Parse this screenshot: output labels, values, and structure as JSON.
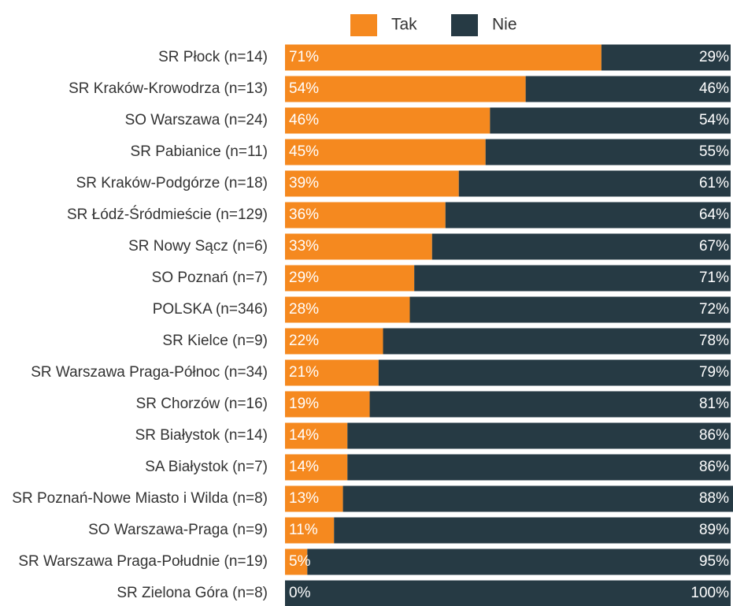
{
  "chart_data": {
    "type": "stacked-bar-horizontal",
    "categories": [
      "SR Płock (n=14)",
      "SR Kraków-Krowodrza (n=13)",
      "SO Warszawa (n=24)",
      "SR Pabianice (n=11)",
      "SR Kraków-Podgórze (n=18)",
      "SR Łódź-Śródmieście (n=129)",
      "SR Nowy Sącz (n=6)",
      "SO Poznań (n=7)",
      "POLSKA (n=346)",
      "SR Kielce (n=9)",
      "SR Warszawa Praga-Północ (n=34)",
      "SR Chorzów (n=16)",
      "SR Białystok (n=14)",
      "SA Białystok (n=7)",
      "SR Poznań-Nowe Miasto i Wilda (n=8)",
      "SO Warszawa-Praga (n=9)",
      "SR Warszawa Praga-Południe (n=19)",
      "SR Zielona Góra (n=8)"
    ],
    "series": [
      {
        "name": "Tak",
        "color": "#f5891f",
        "values": [
          71,
          54,
          46,
          45,
          39,
          36,
          33,
          29,
          28,
          22,
          21,
          19,
          14,
          14,
          13,
          11,
          5,
          0
        ],
        "value_labels": [
          "71%",
          "54%",
          "46%",
          "45%",
          "39%",
          "36%",
          "33%",
          "29%",
          "28%",
          "22%",
          "21%",
          "19%",
          "14%",
          "14%",
          "13%",
          "11%",
          "5%",
          "0%"
        ]
      },
      {
        "name": "Nie",
        "color": "#263a44",
        "values": [
          29,
          46,
          54,
          55,
          61,
          64,
          67,
          71,
          72,
          78,
          79,
          81,
          86,
          86,
          88,
          89,
          95,
          100
        ],
        "value_labels": [
          "29%",
          "46%",
          "54%",
          "55%",
          "61%",
          "64%",
          "67%",
          "71%",
          "72%",
          "78%",
          "79%",
          "81%",
          "86%",
          "86%",
          "88%",
          "89%",
          "95%",
          "100%"
        ]
      }
    ],
    "xlim": [
      0,
      100
    ],
    "legend": "top"
  }
}
